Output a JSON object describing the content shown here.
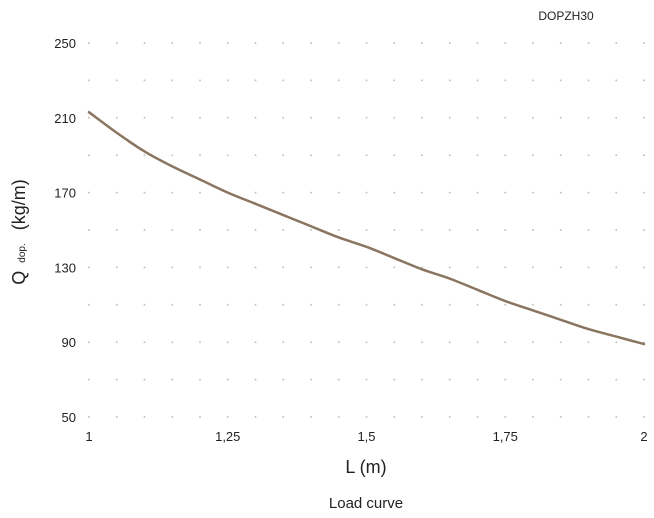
{
  "chart_data": {
    "type": "line",
    "title": "",
    "caption": "Load curve",
    "series_tag": "DOPZH30",
    "xlabel": "L (m)",
    "ylabel_main": "Q",
    "ylabel_sub": "dop.",
    "ylabel_unit": "(kg/m)",
    "xlim": [
      1,
      2
    ],
    "ylim": [
      50,
      250
    ],
    "x_ticks": [
      1,
      1.25,
      1.5,
      1.75,
      2
    ],
    "x_tick_labels": [
      "1",
      "1,25",
      "1,5",
      "1,75",
      "2"
    ],
    "y_ticks": [
      50,
      90,
      130,
      170,
      210,
      250
    ],
    "y_tick_labels": [
      "50",
      "90",
      "130",
      "170",
      "210",
      "250"
    ],
    "grid": "dotted",
    "series": [
      {
        "name": "DOPZH30",
        "color": "#8a7560",
        "x": [
          1.0,
          1.05,
          1.1,
          1.15,
          1.2,
          1.25,
          1.3,
          1.35,
          1.4,
          1.45,
          1.5,
          1.55,
          1.6,
          1.65,
          1.7,
          1.75,
          1.8,
          1.85,
          1.9,
          1.95,
          2.0
        ],
        "y": [
          213,
          202,
          192,
          184,
          177,
          170,
          164,
          158,
          152,
          146,
          141,
          135,
          129,
          124,
          118,
          112,
          107,
          102,
          97,
          93,
          89
        ]
      }
    ]
  }
}
